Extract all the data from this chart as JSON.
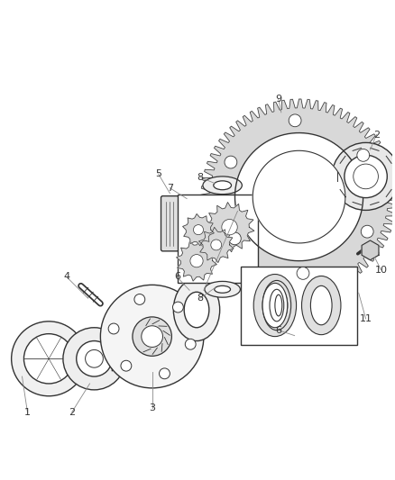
{
  "background_color": "#ffffff",
  "fig_width": 4.38,
  "fig_height": 5.33,
  "dpi": 100,
  "line_color": "#333333",
  "label_font_size": 8,
  "label_color": "#333333",
  "leader_color": "#888888"
}
